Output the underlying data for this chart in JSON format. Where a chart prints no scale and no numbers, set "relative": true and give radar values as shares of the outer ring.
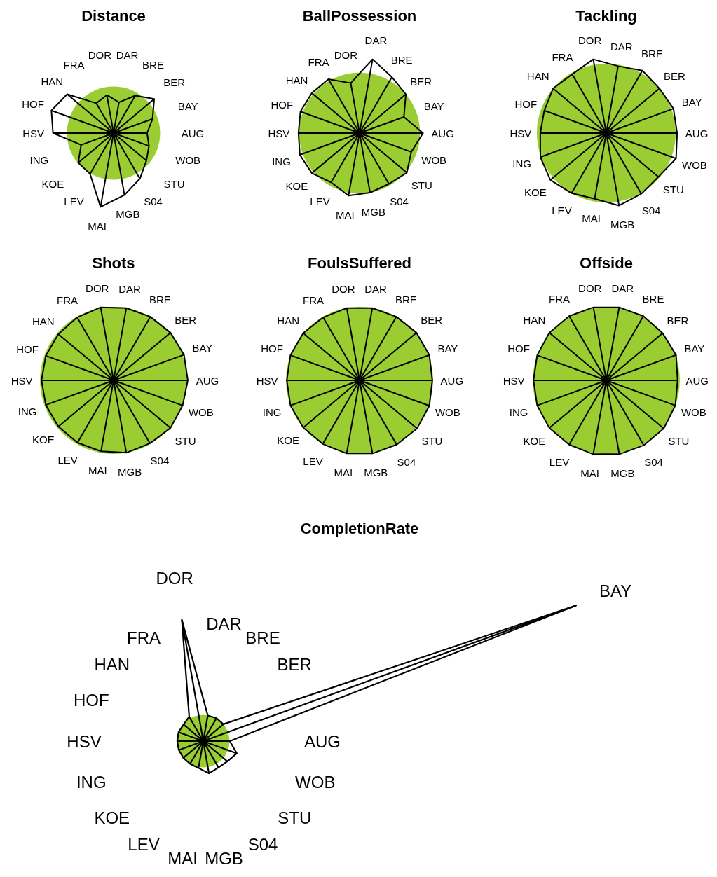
{
  "chart_data": [
    {
      "type": "radar",
      "title": "Distance",
      "categories": [
        "DAR",
        "BRE",
        "BER",
        "BAY",
        "AUG",
        "WOB",
        "STU",
        "S04",
        "MGB",
        "MAI",
        "LEV",
        "KOE",
        "ING",
        "HSV",
        "HOF",
        "HAN",
        "FRA",
        "DOR"
      ],
      "relative": true,
      "grid": true,
      "series": [
        {
          "color": "#000000",
          "values": [
            0.67,
            0.93,
            1.14,
            0.89,
            0.72,
            0.81,
            0.92,
            1.13,
            1.35,
            1.61,
            1.01,
            0.99,
            0.74,
            1.3,
            1.42,
            1.3,
            0.74,
            0.83
          ]
        }
      ]
    },
    {
      "type": "radar",
      "title": "BallPossession",
      "categories": [
        "DAR",
        "BRE",
        "BER",
        "BAY",
        "AUG",
        "WOB",
        "STU",
        "S04",
        "MGB",
        "MAI",
        "LEV",
        "KOE",
        "ING",
        "HSV",
        "HOF",
        "HAN",
        "FRA",
        "DOR"
      ],
      "relative": true,
      "grid": true,
      "series": [
        {
          "color": "#000000",
          "values": [
            1.24,
            1.07,
            1.0,
            0.78,
            1.05,
            0.91,
            1.02,
            0.97,
            1.0,
            1.05,
            0.94,
            1.03,
            1.05,
            1.01,
            1.04,
            1.03,
            1.03,
            0.84
          ]
        }
      ]
    },
    {
      "type": "radar",
      "title": "Tackling",
      "categories": [
        "DAR",
        "BRE",
        "BER",
        "BAY",
        "AUG",
        "WOB",
        "STU",
        "S04",
        "MGB",
        "MAI",
        "LEV",
        "KOE",
        "ING",
        "HSV",
        "HOF",
        "HAN",
        "FRA",
        "DOR"
      ],
      "relative": true,
      "grid": true,
      "series": [
        {
          "color": "#000000",
          "values": [
            0.98,
            1.04,
            1.0,
            1.03,
            1.02,
            1.07,
            0.98,
            1.01,
            1.06,
            0.96,
            1.0,
            1.05,
            1.01,
            0.95,
            0.95,
            1.0,
            0.98,
            1.08
          ]
        }
      ]
    },
    {
      "type": "radar",
      "title": "Shots",
      "categories": [
        "DAR",
        "BRE",
        "BER",
        "BAY",
        "AUG",
        "WOB",
        "STU",
        "S04",
        "MGB",
        "MAI",
        "LEV",
        "KOE",
        "ING",
        "HSV",
        "HOF",
        "HAN",
        "FRA",
        "DOR"
      ],
      "relative": true,
      "grid": true,
      "series": [
        {
          "color": "#000000",
          "values": [
            1.0,
            1.0,
            1.01,
            1.02,
            1.01,
            1.0,
            1.01,
            0.99,
            1.0,
            0.98,
            0.98,
            0.98,
            0.98,
            0.98,
            0.98,
            0.98,
            0.99,
            1.01
          ]
        }
      ]
    },
    {
      "type": "radar",
      "title": "FoulsSuffered",
      "categories": [
        "DAR",
        "BRE",
        "BER",
        "BAY",
        "AUG",
        "WOB",
        "STU",
        "S04",
        "MGB",
        "MAI",
        "LEV",
        "KOE",
        "ING",
        "HSV",
        "HOF",
        "HAN",
        "FRA",
        "DOR"
      ],
      "relative": true,
      "grid": true,
      "series": [
        {
          "color": "#000000",
          "values": [
            1.0,
            1.0,
            1.01,
            1.01,
            0.99,
            1.01,
            1.02,
            1.01,
            1.01,
            1.01,
            1.0,
            1.0,
            1.0,
            0.99,
            1.0,
            1.0,
            0.99,
            1.0
          ]
        }
      ]
    },
    {
      "type": "radar",
      "title": "Offside",
      "categories": [
        "DAR",
        "BRE",
        "BER",
        "BAY",
        "AUG",
        "WOB",
        "STU",
        "S04",
        "MGB",
        "MAI",
        "LEV",
        "KOE",
        "ING",
        "HSV",
        "HOF",
        "HAN",
        "FRA",
        "DOR"
      ],
      "relative": true,
      "grid": true,
      "series": [
        {
          "color": "#000000",
          "values": [
            1.01,
            1.01,
            1.0,
            1.01,
            0.97,
            1.0,
            1.02,
            1.02,
            1.02,
            1.02,
            1.01,
            1.01,
            1.0,
            0.99,
            1.0,
            1.01,
            1.01,
            1.01
          ]
        }
      ]
    },
    {
      "type": "radar",
      "title": "CompletionRate",
      "categories": [
        "DAR",
        "BRE",
        "BER",
        "BAY",
        "AUG",
        "WOB",
        "STU",
        "S04",
        "MGB",
        "MAI",
        "LEV",
        "KOE",
        "ING",
        "HSV",
        "HOF",
        "HAN",
        "FRA",
        "DOR"
      ],
      "relative": true,
      "grid": true,
      "series": [
        {
          "color": "#000000",
          "values": [
            0.99,
            1.01,
            1.0,
            15.1,
            1.01,
            1.36,
            1.2,
            1.16,
            1.25,
            1.04,
            1.0,
            0.99,
            0.99,
            0.99,
            1.0,
            0.98,
            1.07,
            4.69
          ]
        }
      ]
    }
  ]
}
